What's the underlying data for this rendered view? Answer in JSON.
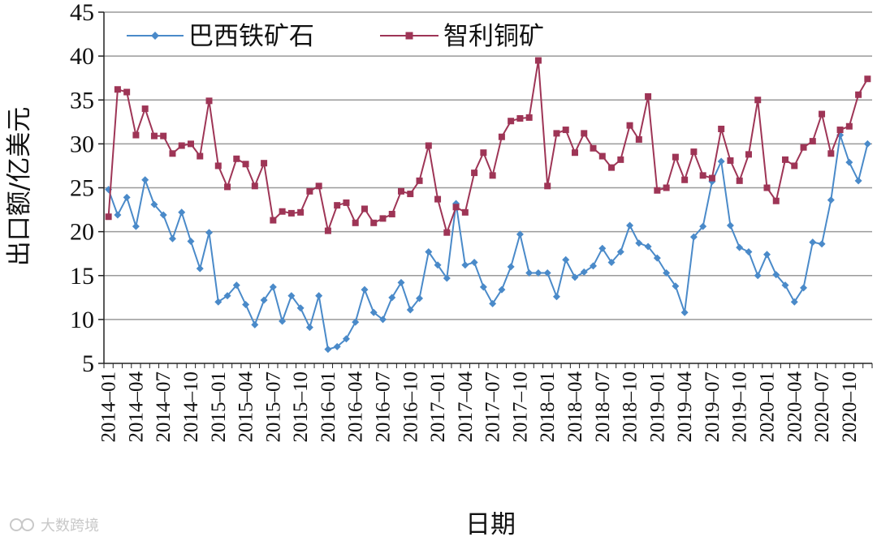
{
  "watermark": "大数跨境",
  "chart_data": {
    "type": "line",
    "xlabel": "日期",
    "ylabel": "出口额/亿美元",
    "ylim": [
      5,
      45
    ],
    "yticks": [
      5,
      10,
      15,
      20,
      25,
      30,
      35,
      40,
      45
    ],
    "grid": true,
    "legend_position": "top",
    "x": [
      "2014-01",
      "2014-02",
      "2014-03",
      "2014-04",
      "2014-05",
      "2014-06",
      "2014-07",
      "2014-08",
      "2014-09",
      "2014-10",
      "2014-11",
      "2014-12",
      "2015-01",
      "2015-02",
      "2015-03",
      "2015-04",
      "2015-05",
      "2015-06",
      "2015-07",
      "2015-08",
      "2015-09",
      "2015-10",
      "2015-11",
      "2015-12",
      "2016-01",
      "2016-02",
      "2016-03",
      "2016-04",
      "2016-05",
      "2016-06",
      "2016-07",
      "2016-08",
      "2016-09",
      "2016-10",
      "2016-11",
      "2016-12",
      "2017-01",
      "2017-02",
      "2017-03",
      "2017-04",
      "2017-05",
      "2017-06",
      "2017-07",
      "2017-08",
      "2017-09",
      "2017-10",
      "2017-11",
      "2017-12",
      "2018-01",
      "2018-02",
      "2018-03",
      "2018-04",
      "2018-05",
      "2018-06",
      "2018-07",
      "2018-08",
      "2018-09",
      "2018-10",
      "2018-11",
      "2018-12",
      "2019-01",
      "2019-02",
      "2019-03",
      "2019-04",
      "2019-05",
      "2019-06",
      "2019-07",
      "2019-08",
      "2019-09",
      "2019-10",
      "2019-11",
      "2019-12",
      "2020-01",
      "2020-02",
      "2020-03",
      "2020-04",
      "2020-05",
      "2020-06",
      "2020-07",
      "2020-08",
      "2020-09",
      "2020-10",
      "2020-11",
      "2020-12"
    ],
    "xtick_labels": [
      "2014–01",
      "2014–04",
      "2014–07",
      "2014–10",
      "2015–01",
      "2015–04",
      "2015–07",
      "2015–10",
      "2016–01",
      "2016–04",
      "2016–07",
      "2016–10",
      "2017–01",
      "2017–04",
      "2017–07",
      "2017–10",
      "2018–01",
      "2018–04",
      "2018–07",
      "2018–10",
      "2019–01",
      "2019–04",
      "2019–07",
      "2019–10",
      "2020–01",
      "2020–04",
      "2020–07",
      "2020–10"
    ],
    "series": [
      {
        "name": "巴西铁矿石",
        "color": "#4a8ac9",
        "marker": "diamond",
        "values": [
          24.8,
          21.9,
          23.9,
          20.6,
          25.9,
          23.1,
          21.9,
          19.2,
          22.2,
          18.9,
          15.8,
          19.9,
          12.0,
          12.7,
          13.9,
          11.7,
          9.4,
          12.2,
          13.7,
          9.8,
          12.7,
          11.3,
          9.1,
          12.7,
          6.6,
          6.9,
          7.8,
          9.7,
          13.4,
          10.8,
          10.0,
          12.5,
          14.2,
          11.1,
          12.4,
          17.7,
          16.2,
          14.7,
          23.2,
          16.2,
          16.5,
          13.7,
          11.8,
          13.4,
          16.0,
          19.7,
          15.3,
          15.3,
          15.3,
          12.6,
          16.8,
          14.8,
          15.4,
          16.1,
          18.1,
          16.5,
          17.7,
          20.7,
          18.7,
          18.3,
          17.0,
          15.3,
          13.8,
          10.8,
          19.4,
          20.6,
          25.7,
          28.0,
          20.7,
          18.2,
          17.7,
          15.0,
          17.4,
          15.1,
          13.9,
          12.0,
          13.6,
          18.8,
          18.6,
          23.6,
          31.0,
          27.9,
          25.8,
          30.0
        ]
      },
      {
        "name": "智利铜矿",
        "color": "#9e3556",
        "marker": "square",
        "values": [
          21.7,
          36.2,
          35.9,
          31.0,
          34.0,
          30.9,
          30.9,
          28.9,
          29.8,
          30.0,
          28.6,
          34.9,
          27.5,
          25.1,
          28.3,
          27.7,
          25.2,
          27.8,
          21.3,
          22.3,
          22.1,
          22.2,
          24.6,
          25.2,
          20.1,
          23.0,
          23.3,
          21.0,
          22.6,
          21.0,
          21.5,
          22.0,
          24.6,
          24.3,
          25.8,
          29.8,
          23.7,
          19.9,
          22.8,
          22.2,
          26.7,
          29.0,
          26.4,
          30.8,
          32.6,
          32.9,
          33.0,
          39.5,
          25.2,
          31.2,
          31.6,
          29.0,
          31.2,
          29.5,
          28.6,
          27.3,
          28.2,
          32.1,
          30.5,
          35.4,
          24.7,
          25.0,
          28.5,
          25.9,
          29.1,
          26.4,
          26.1,
          31.7,
          28.1,
          25.8,
          28.8,
          35.0,
          25.0,
          23.5,
          28.2,
          27.5,
          29.6,
          30.3,
          33.4,
          28.9,
          31.6,
          32.0,
          35.6,
          37.4
        ]
      }
    ]
  }
}
